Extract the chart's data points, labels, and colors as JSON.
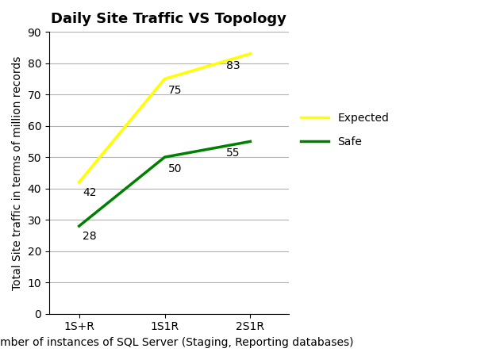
{
  "title": "Daily Site Traffic VS Topology",
  "xlabel": "Number of instances of SQL Server (Staging, Reporting databases)",
  "ylabel": "Total Site traffic in terms of million records",
  "x_labels": [
    "1S+R",
    "1S1R",
    "2S1R"
  ],
  "expected_values": [
    42,
    75,
    83
  ],
  "safe_values": [
    28,
    50,
    55
  ],
  "expected_color": "#FFFF00",
  "safe_color": "#008000",
  "ylim": [
    0,
    90
  ],
  "yticks": [
    0,
    10,
    20,
    30,
    40,
    50,
    60,
    70,
    80,
    90
  ],
  "line_width": 2.5,
  "legend_labels": [
    "Expected",
    "Safe"
  ],
  "background_color": "#ffffff",
  "annotation_fontsize": 10,
  "title_fontsize": 13,
  "axis_label_fontsize": 10,
  "tick_fontsize": 10
}
